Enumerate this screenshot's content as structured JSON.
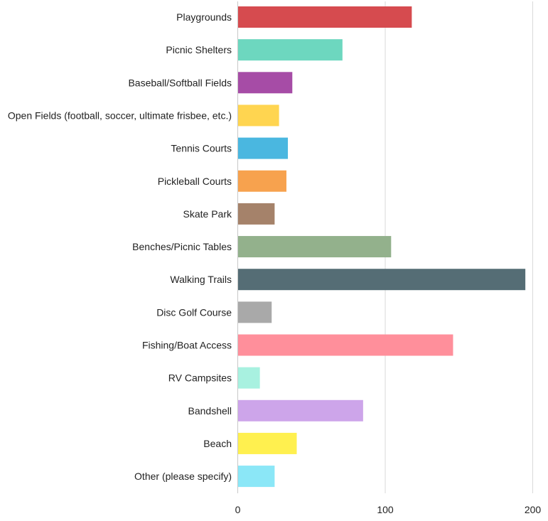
{
  "chart_data": {
    "type": "bar",
    "orientation": "horizontal",
    "title": "",
    "xlabel": "",
    "ylabel": "",
    "xlim": [
      0,
      200
    ],
    "x_ticks": [
      0,
      100,
      200
    ],
    "grid": true,
    "categories": [
      "Playgrounds",
      "Picnic Shelters",
      "Baseball/Softball Fields",
      "Open Fields (football, soccer, ultimate frisbee, etc.)",
      "Tennis Courts",
      "Pickleball Courts",
      "Skate Park",
      "Benches/Picnic Tables",
      "Walking Trails",
      "Disc Golf Course",
      "Fishing/Boat Access",
      "RV Campsites",
      "Bandshell",
      "Beach",
      "Other (please specify)"
    ],
    "values": [
      118,
      71,
      37,
      28,
      34,
      33,
      25,
      104,
      195,
      23,
      146,
      15,
      85,
      40,
      25
    ],
    "colors": [
      "#d64b4f",
      "#6dd7bf",
      "#a64ca6",
      "#ffd550",
      "#4ab7e0",
      "#f7a24e",
      "#a5826a",
      "#93b18c",
      "#556d75",
      "#a9a9a9",
      "#ff8f9b",
      "#a8f1e0",
      "#cda5ea",
      "#fff04f",
      "#8be7f7"
    ]
  }
}
